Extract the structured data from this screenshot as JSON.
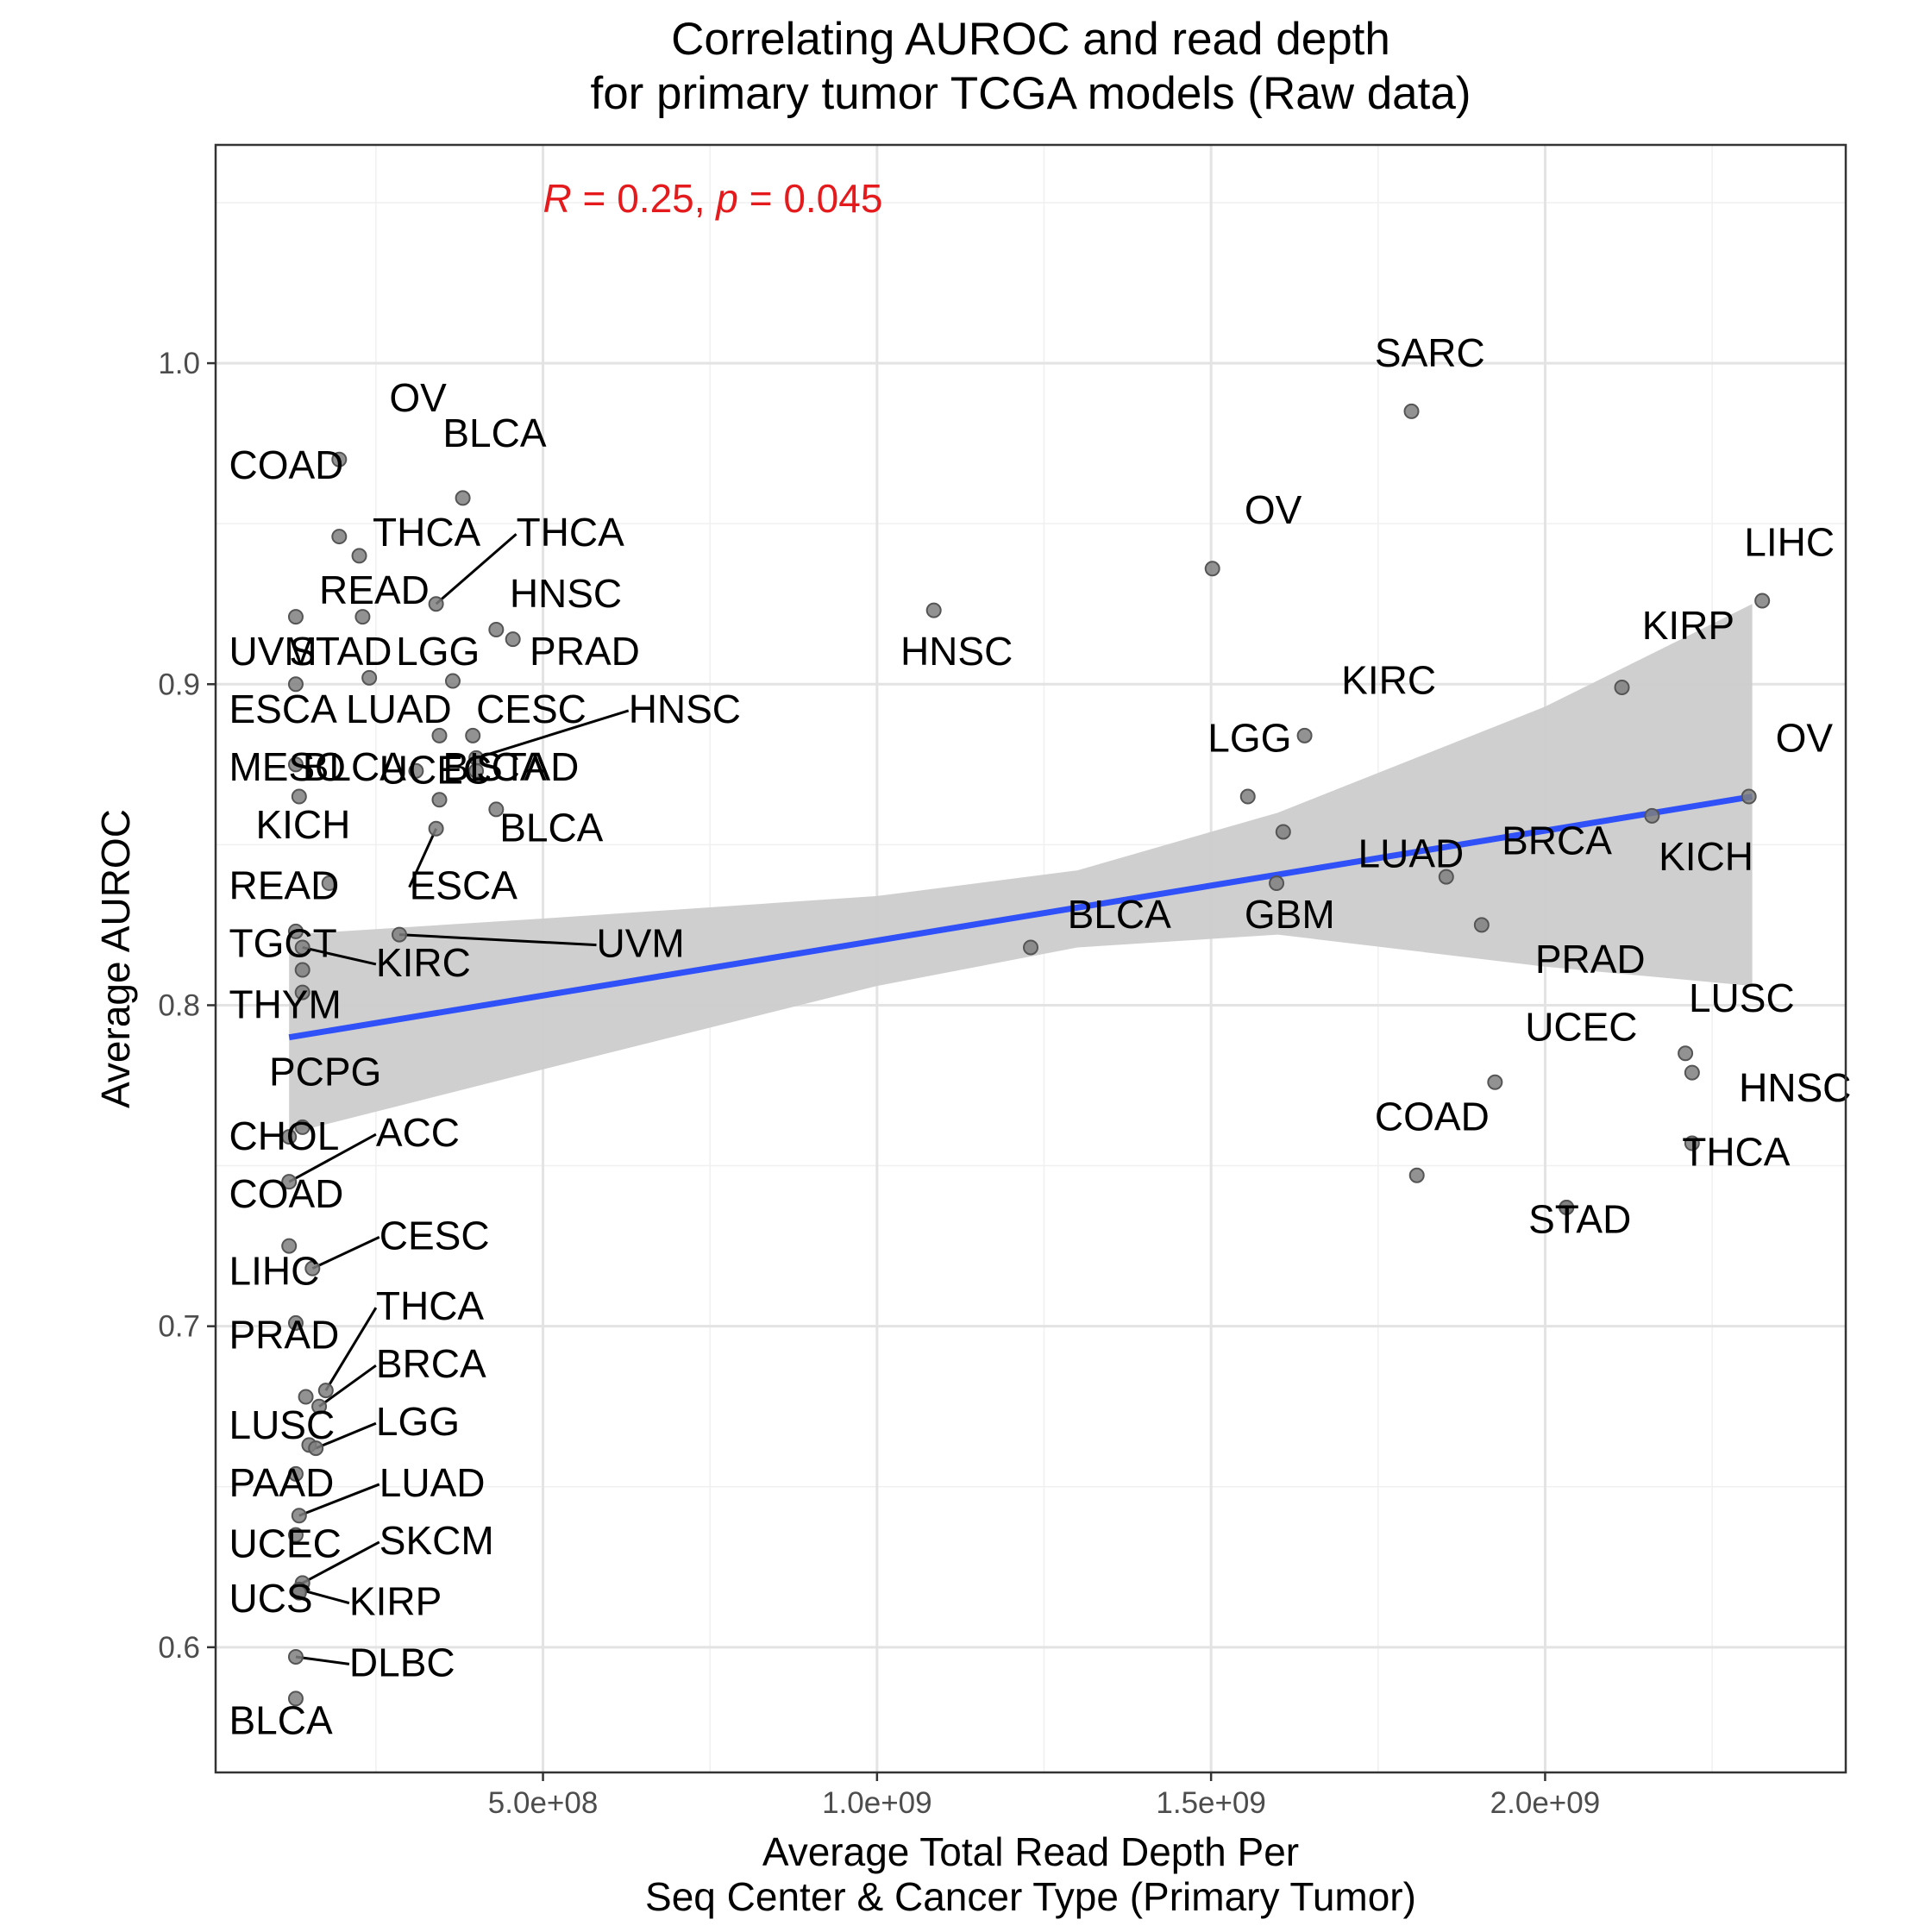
{
  "chart_data": {
    "type": "scatter",
    "title": [
      "Correlating AUROC and read depth",
      "for primary tumor TCGA models (Raw data)"
    ],
    "xlabel": [
      "Average Total Read Depth Per",
      "Seq Center & Cancer Type (Primary Tumor)"
    ],
    "ylabel": "Average AUROC",
    "xlim": [
      10000000,
      2450000000
    ],
    "ylim": [
      0.561,
      1.068
    ],
    "x_ticks": [
      {
        "value": 500000000,
        "label": "5.0e+08"
      },
      {
        "value": 1000000000,
        "label": "1.0e+09"
      },
      {
        "value": 1500000000,
        "label": "1.5e+09"
      },
      {
        "value": 2000000000,
        "label": "2.0e+09"
      }
    ],
    "x_minor_ticks": [
      250000000,
      750000000,
      1250000000,
      1750000000,
      2250000000
    ],
    "y_ticks": [
      {
        "value": 0.6,
        "label": "0.6"
      },
      {
        "value": 0.7,
        "label": "0.7"
      },
      {
        "value": 0.8,
        "label": "0.8"
      },
      {
        "value": 0.9,
        "label": "0.9"
      },
      {
        "value": 1.0,
        "label": "1.0"
      }
    ],
    "y_minor_ticks": [
      0.65,
      0.75,
      0.85,
      0.95,
      1.05
    ],
    "grid": true,
    "annotation": {
      "r_sym": "R",
      "r_text": " = 0.25, ",
      "p_sym": "p",
      "p_text": " = 0.045",
      "x": 500000000,
      "y": 1.047,
      "color": "#e41a1c"
    },
    "trend_line": {
      "x": [
        120000000,
        2310000000
      ],
      "y": [
        0.79,
        0.865
      ],
      "color": "#3050f8"
    },
    "confidence_band": {
      "x": [
        120000000,
        500000000,
        1000000000,
        1300000000,
        1600000000,
        2000000000,
        2310000000
      ],
      "upper": [
        0.822,
        0.827,
        0.834,
        0.842,
        0.86,
        0.893,
        0.925
      ],
      "lower": [
        0.76,
        0.78,
        0.806,
        0.818,
        0.822,
        0.812,
        0.806
      ],
      "color": "#cccccc"
    },
    "points": [
      {
        "label": "OV",
        "x": 195000000,
        "y": 0.97,
        "lx": 270000000,
        "ly": 0.985,
        "leader": false
      },
      {
        "label": "BLCA",
        "x": 380000000,
        "y": 0.958,
        "lx": 350000000,
        "ly": 0.974,
        "leader": false
      },
      {
        "label": "COAD",
        "x": 195000000,
        "y": 0.946,
        "lx": 30000000,
        "ly": 0.964,
        "leader": false
      },
      {
        "label": "THCA",
        "x": 225000000,
        "y": 0.94,
        "lx": 245000000,
        "ly": 0.943,
        "leader": false
      },
      {
        "label": "THCA",
        "x": 340000000,
        "y": 0.925,
        "lx": 460000000,
        "ly": 0.943,
        "leader": true
      },
      {
        "label": "HNSC",
        "x": 430000000,
        "y": 0.917,
        "lx": 450000000,
        "ly": 0.924,
        "leader": false
      },
      {
        "label": "PRAD",
        "x": 455000000,
        "y": 0.914,
        "lx": 480000000,
        "ly": 0.906,
        "leader": false
      },
      {
        "label": "READ",
        "x": 230000000,
        "y": 0.921,
        "lx": 165000000,
        "ly": 0.925,
        "leader": false
      },
      {
        "label": "UVM",
        "x": 130000000,
        "y": 0.921,
        "lx": 30000000,
        "ly": 0.906,
        "leader": false
      },
      {
        "label": "STAD",
        "x": 240000000,
        "y": 0.902,
        "lx": 120000000,
        "ly": 0.906,
        "leader": false
      },
      {
        "label": "LGG",
        "x": 365000000,
        "y": 0.901,
        "lx": 280000000,
        "ly": 0.906,
        "leader": false
      },
      {
        "label": "ESCA",
        "x": 130000000,
        "y": 0.9,
        "lx": 30000000,
        "ly": 0.888,
        "leader": false
      },
      {
        "label": "LUAD",
        "x": 345000000,
        "y": 0.884,
        "lx": 205000000,
        "ly": 0.888,
        "leader": false
      },
      {
        "label": "CESC",
        "x": 395000000,
        "y": 0.884,
        "lx": 400000000,
        "ly": 0.888,
        "leader": false
      },
      {
        "label": "HNSC",
        "x": 400000000,
        "y": 0.877,
        "lx": 628000000,
        "ly": 0.888,
        "leader": true
      },
      {
        "label": "MESO",
        "x": 130000000,
        "y": 0.875,
        "lx": 30000000,
        "ly": 0.87,
        "leader": false
      },
      {
        "label": "UCEC",
        "x": 310000000,
        "y": 0.873,
        "lx": 255000000,
        "ly": 0.869,
        "leader": false
      },
      {
        "label": "STAD",
        "x": 400000000,
        "y": 0.873,
        "lx": 400000000,
        "ly": 0.87,
        "leader": false
      },
      {
        "label": "BLCA",
        "x": 135000000,
        "y": 0.865,
        "lx": 140000000,
        "ly": 0.87,
        "leader": false
      },
      {
        "label": "BLCA",
        "x": 345000000,
        "y": 0.864,
        "lx": 350000000,
        "ly": 0.87,
        "leader": false
      },
      {
        "label": "BLCA",
        "x": 430000000,
        "y": 0.861,
        "lx": 435000000,
        "ly": 0.851,
        "leader": false
      },
      {
        "label": "ESCA",
        "x": 340000000,
        "y": 0.855,
        "lx": 300000000,
        "ly": 0.833,
        "leader": true
      },
      {
        "label": "KICH",
        "x": 180000000,
        "y": 0.838,
        "lx": 70000000,
        "ly": 0.852,
        "leader": false
      },
      {
        "label": "READ",
        "x": 130000000,
        "y": 0.823,
        "lx": 30000000,
        "ly": 0.833,
        "leader": false
      },
      {
        "label": "UVM",
        "x": 285000000,
        "y": 0.822,
        "lx": 580000000,
        "ly": 0.815,
        "leader": true
      },
      {
        "label": "KIRC",
        "x": 140000000,
        "y": 0.818,
        "lx": 250000000,
        "ly": 0.809,
        "leader": true
      },
      {
        "label": "TGCT",
        "x": 140000000,
        "y": 0.811,
        "lx": 30000000,
        "ly": 0.815,
        "leader": false
      },
      {
        "label": "THYM",
        "x": 140000000,
        "y": 0.804,
        "lx": 30000000,
        "ly": 0.796,
        "leader": false
      },
      {
        "label": "PCPG",
        "x": 140000000,
        "y": 0.762,
        "lx": 90000000,
        "ly": 0.775,
        "leader": false
      },
      {
        "label": "CHOL",
        "x": 120000000,
        "y": 0.759,
        "lx": 30000000,
        "ly": 0.755,
        "leader": false
      },
      {
        "label": "ACC",
        "x": 120000000,
        "y": 0.745,
        "lx": 250000000,
        "ly": 0.756,
        "leader": true
      },
      {
        "label": "COAD",
        "x": 120000000,
        "y": 0.725,
        "lx": 30000000,
        "ly": 0.737,
        "leader": false
      },
      {
        "label": "CESC",
        "x": 155000000,
        "y": 0.718,
        "lx": 255000000,
        "ly": 0.724,
        "leader": true
      },
      {
        "label": "LIHC",
        "x": 130000000,
        "y": 0.701,
        "lx": 30000000,
        "ly": 0.713,
        "leader": false
      },
      {
        "label": "THCA",
        "x": 175000000,
        "y": 0.68,
        "lx": 250000000,
        "ly": 0.702,
        "leader": true
      },
      {
        "label": "PRAD",
        "x": 145000000,
        "y": 0.678,
        "lx": 30000000,
        "ly": 0.693,
        "leader": false
      },
      {
        "label": "BRCA",
        "x": 165000000,
        "y": 0.675,
        "lx": 250000000,
        "ly": 0.684,
        "leader": true
      },
      {
        "label": "LUSC",
        "x": 150000000,
        "y": 0.663,
        "lx": 30000000,
        "ly": 0.665,
        "leader": false
      },
      {
        "label": "LGG",
        "x": 160000000,
        "y": 0.662,
        "lx": 250000000,
        "ly": 0.666,
        "leader": true
      },
      {
        "label": "PAAD",
        "x": 130000000,
        "y": 0.654,
        "lx": 30000000,
        "ly": 0.647,
        "leader": false
      },
      {
        "label": "LUAD",
        "x": 135000000,
        "y": 0.641,
        "lx": 255000000,
        "ly": 0.647,
        "leader": true
      },
      {
        "label": "UCEC",
        "x": 130000000,
        "y": 0.635,
        "lx": 30000000,
        "ly": 0.628,
        "leader": false
      },
      {
        "label": "SKCM",
        "x": 140000000,
        "y": 0.62,
        "lx": 255000000,
        "ly": 0.629,
        "leader": true
      },
      {
        "label": "KIRP",
        "x": 135000000,
        "y": 0.618,
        "lx": 210000000,
        "ly": 0.61,
        "leader": true
      },
      {
        "label": "UCS",
        "x": 135000000,
        "y": 0.617,
        "lx": 30000000,
        "ly": 0.611,
        "leader": false
      },
      {
        "label": "DLBC",
        "x": 130000000,
        "y": 0.597,
        "lx": 210000000,
        "ly": 0.591,
        "leader": true
      },
      {
        "label": "BLCA",
        "x": 130000000,
        "y": 0.584,
        "lx": 30000000,
        "ly": 0.573,
        "leader": false
      },
      {
        "label": "HNSC",
        "x": 1085000000,
        "y": 0.923,
        "lx": 1035000000,
        "ly": 0.906,
        "leader": false
      },
      {
        "label": "SARC",
        "x": 1800000000,
        "y": 0.985,
        "lx": 1745000000,
        "ly": 0.999,
        "leader": false
      },
      {
        "label": "OV",
        "x": 1502000000,
        "y": 0.936,
        "lx": 1550000000,
        "ly": 0.95,
        "leader": false
      },
      {
        "label": "LIHC",
        "x": 2325000000,
        "y": 0.926,
        "lx": 2298000000,
        "ly": 0.94,
        "leader": false
      },
      {
        "label": "KIRP",
        "x": 2115000000,
        "y": 0.899,
        "lx": 2145000000,
        "ly": 0.914,
        "leader": false
      },
      {
        "label": "KIRC",
        "x": 1640000000,
        "y": 0.884,
        "lx": 1695000000,
        "ly": 0.897,
        "leader": false
      },
      {
        "label": "LGG",
        "x": 1555000000,
        "y": 0.865,
        "lx": 1495000000,
        "ly": 0.879,
        "leader": false
      },
      {
        "label": "OV",
        "x": 2305000000,
        "y": 0.865,
        "lx": 2345000000,
        "ly": 0.879,
        "leader": false
      },
      {
        "label": "KICH",
        "x": 2160000000,
        "y": 0.859,
        "lx": 2170000000,
        "ly": 0.842,
        "leader": false
      },
      {
        "label": "LUAD",
        "x": 1608000000,
        "y": 0.854,
        "lx": 1720000000,
        "ly": 0.843,
        "leader": false
      },
      {
        "label": "BRCA",
        "x": 1852000000,
        "y": 0.84,
        "lx": 1935000000,
        "ly": 0.847,
        "leader": false
      },
      {
        "label": "GBM",
        "x": 1598000000,
        "y": 0.838,
        "lx": 1550000000,
        "ly": 0.824,
        "leader": false
      },
      {
        "label": "PRAD",
        "x": 1905000000,
        "y": 0.825,
        "lx": 1985000000,
        "ly": 0.81,
        "leader": false
      },
      {
        "label": "BLCA",
        "x": 1230000000,
        "y": 0.818,
        "lx": 1285000000,
        "ly": 0.824,
        "leader": false
      },
      {
        "label": "LUSC",
        "x": 2210000000,
        "y": 0.785,
        "lx": 2215000000,
        "ly": 0.798,
        "leader": false
      },
      {
        "label": "UCEC",
        "x": 1925000000,
        "y": 0.776,
        "lx": 1970000000,
        "ly": 0.789,
        "leader": false
      },
      {
        "label": "HNSC",
        "x": 2220000000,
        "y": 0.779,
        "lx": 2290000000,
        "ly": 0.77,
        "leader": false
      },
      {
        "label": "HNSC",
        "x": 2220000000,
        "y": 0.757,
        "lx": 2290000000,
        "ly": 0.77,
        "leader": false
      },
      {
        "label": "COAD",
        "x": 1808000000,
        "y": 0.747,
        "lx": 1745000000,
        "ly": 0.761,
        "leader": false
      },
      {
        "label": "THCA",
        "x": 2032000000,
        "y": 0.737,
        "lx": 2205000000,
        "ly": 0.75,
        "leader": false
      },
      {
        "label": "STAD",
        "x": 2032000000,
        "y": 0.737,
        "lx": 1975000000,
        "ly": 0.729,
        "leader": false
      }
    ]
  }
}
